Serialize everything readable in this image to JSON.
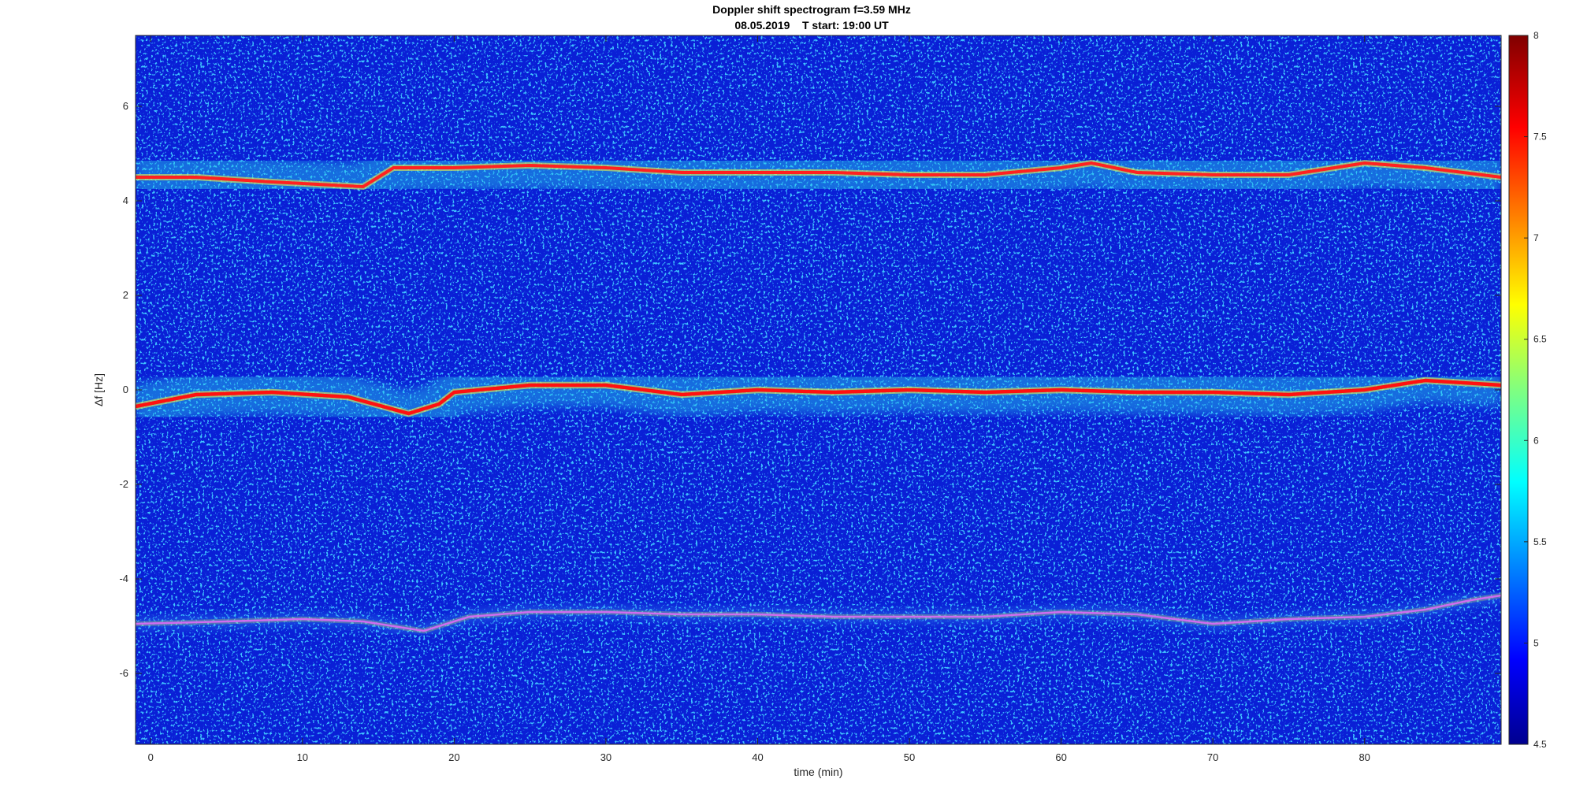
{
  "chart_data": {
    "type": "heatmap",
    "title": "Doppler shift spectrogram f=3.59 MHz",
    "subtitle": "08.05.2019    T start: 19:00 UT",
    "xlabel": "time (min)",
    "ylabel": "Δf [Hz]",
    "xlim": [
      -1,
      89
    ],
    "ylim": [
      -7.5,
      7.5
    ],
    "xticks": [
      0,
      10,
      20,
      30,
      40,
      50,
      60,
      70,
      80
    ],
    "yticks": [
      -6,
      -4,
      -2,
      0,
      2,
      4,
      6
    ],
    "colorbar": {
      "colormap": "jet",
      "range": [
        4.5,
        8
      ],
      "ticks": [
        4.5,
        5,
        5.5,
        6,
        6.5,
        7,
        7.5,
        8
      ]
    },
    "series": [
      {
        "x": [
          -1,
          3,
          8,
          14,
          15.5,
          16,
          20,
          25,
          30,
          35,
          40,
          45,
          50,
          55,
          60,
          62,
          65,
          70,
          75,
          80,
          84,
          89
        ],
        "y": [
          4.5,
          4.5,
          4.4,
          4.3,
          4.6,
          4.7,
          4.7,
          4.75,
          4.7,
          4.6,
          4.6,
          4.6,
          4.55,
          4.55,
          4.7,
          4.8,
          4.6,
          4.55,
          4.55,
          4.8,
          4.7,
          4.5
        ]
      },
      {
        "x": [
          -1,
          3,
          8,
          13,
          17,
          19,
          20,
          25,
          30,
          35,
          40,
          45,
          50,
          55,
          60,
          65,
          70,
          75,
          80,
          84,
          89
        ],
        "y": [
          -0.35,
          -0.1,
          -0.05,
          -0.15,
          -0.5,
          -0.3,
          -0.05,
          0.1,
          0.1,
          -0.1,
          0.0,
          -0.05,
          0.0,
          -0.05,
          0.0,
          -0.05,
          -0.05,
          -0.1,
          0.0,
          0.2,
          0.1
        ]
      },
      {
        "x": [
          -1,
          5,
          10,
          14,
          18,
          21,
          25,
          30,
          35,
          40,
          45,
          50,
          55,
          60,
          65,
          70,
          75,
          80,
          84,
          87,
          89
        ],
        "y": [
          -4.95,
          -4.9,
          -4.85,
          -4.9,
          -5.1,
          -4.8,
          -4.7,
          -4.7,
          -4.75,
          -4.75,
          -4.8,
          -4.8,
          -4.8,
          -4.7,
          -4.75,
          -4.95,
          -4.85,
          -4.8,
          -4.65,
          -4.45,
          -4.35
        ]
      }
    ]
  }
}
